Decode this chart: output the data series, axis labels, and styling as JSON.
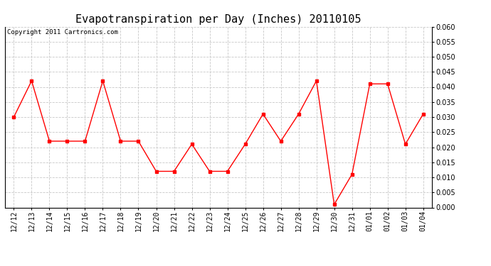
{
  "title": "Evapotranspiration per Day (Inches) 20110105",
  "copyright_text": "Copyright 2011 Cartronics.com",
  "x_labels": [
    "12/12",
    "12/13",
    "12/14",
    "12/15",
    "12/16",
    "12/17",
    "12/18",
    "12/19",
    "12/20",
    "12/21",
    "12/22",
    "12/23",
    "12/24",
    "12/25",
    "12/26",
    "12/27",
    "12/28",
    "12/29",
    "12/30",
    "12/31",
    "01/01",
    "01/02",
    "01/03",
    "01/04"
  ],
  "y_values": [
    0.03,
    0.042,
    0.022,
    0.022,
    0.022,
    0.042,
    0.022,
    0.022,
    0.012,
    0.012,
    0.021,
    0.012,
    0.012,
    0.021,
    0.031,
    0.022,
    0.031,
    0.042,
    0.001,
    0.011,
    0.041,
    0.041,
    0.021,
    0.031
  ],
  "line_color": "#ff0000",
  "marker": "s",
  "marker_size": 3,
  "ylim": [
    0.0,
    0.06
  ],
  "yticks": [
    0.0,
    0.005,
    0.01,
    0.015,
    0.02,
    0.025,
    0.03,
    0.035,
    0.04,
    0.045,
    0.05,
    0.055,
    0.06
  ],
  "background_color": "#ffffff",
  "grid_color": "#c8c8c8",
  "title_fontsize": 11,
  "copyright_fontsize": 6.5,
  "tick_fontsize": 7
}
